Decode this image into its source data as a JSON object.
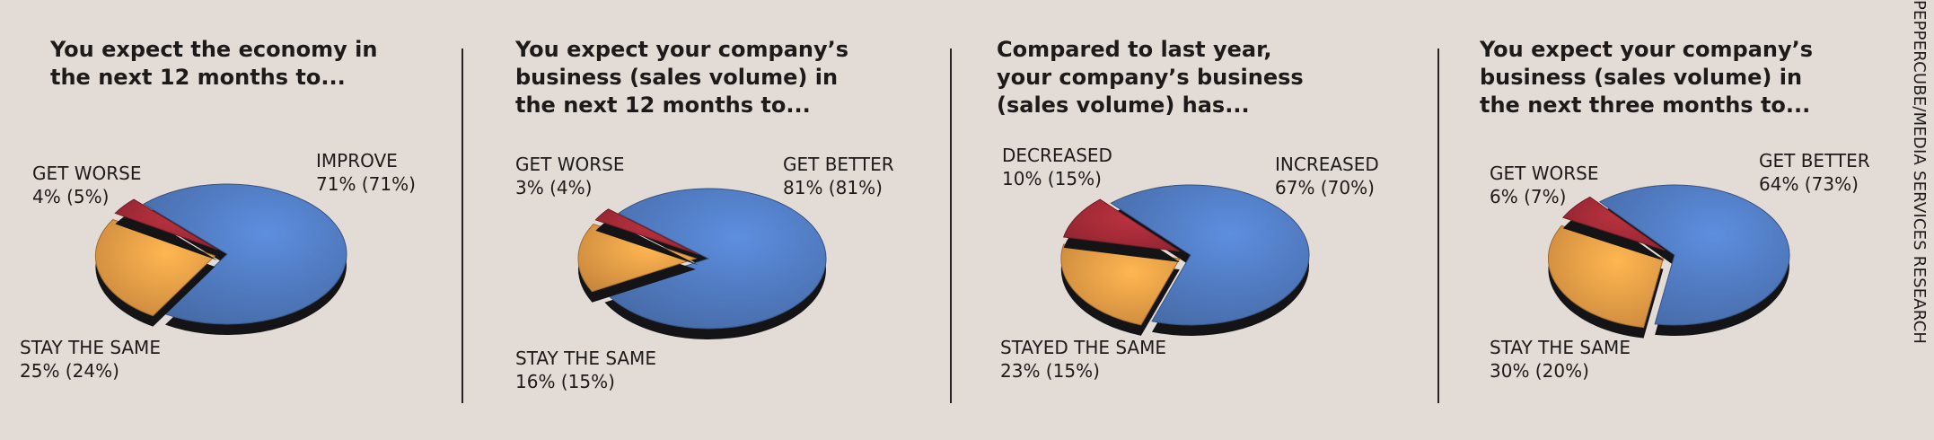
{
  "credit": "PEPPERCUBE/MEDIA SERVICES RESEARCH",
  "colors": {
    "blue": "#4f78bd",
    "orange": "#e69a45",
    "red": "#a12a36"
  },
  "chart_data": [
    {
      "type": "pie",
      "title_lines": [
        "You expect the economy in",
        "the next 12 months to..."
      ],
      "slices": [
        {
          "label": "IMPROVE",
          "value": 71,
          "prior": 71,
          "text": "71% (71%)",
          "color": "blue"
        },
        {
          "label": "STAY THE SAME",
          "value": 25,
          "prior": 24,
          "text": "25% (24%)",
          "color": "orange"
        },
        {
          "label": "GET WORSE",
          "value": 4,
          "prior": 5,
          "text": "4% (5%)",
          "color": "red"
        }
      ]
    },
    {
      "type": "pie",
      "title_lines": [
        "You expect your company’s",
        "business (sales volume) in",
        "the next 12 months to..."
      ],
      "slices": [
        {
          "label": "GET BETTER",
          "value": 81,
          "prior": 81,
          "text": "81% (81%)",
          "color": "blue"
        },
        {
          "label": "STAY THE SAME",
          "value": 16,
          "prior": 15,
          "text": "16% (15%)",
          "color": "orange"
        },
        {
          "label": "GET WORSE",
          "value": 3,
          "prior": 4,
          "text": "3% (4%)",
          "color": "red"
        }
      ]
    },
    {
      "type": "pie",
      "title_lines": [
        "Compared to last year,",
        "your company’s business",
        "(sales volume) has..."
      ],
      "slices": [
        {
          "label": "INCREASED",
          "value": 67,
          "prior": 70,
          "text": "67% (70%)",
          "color": "blue"
        },
        {
          "label": "STAYED THE SAME",
          "value": 23,
          "prior": 15,
          "text": "23% (15%)",
          "color": "orange"
        },
        {
          "label": "DECREASED",
          "value": 10,
          "prior": 15,
          "text": "10% (15%)",
          "color": "red"
        }
      ]
    },
    {
      "type": "pie",
      "title_lines": [
        "You expect your company’s",
        "business (sales volume) in",
        "the next three months to..."
      ],
      "slices": [
        {
          "label": "GET BETTER",
          "value": 64,
          "prior": 73,
          "text": "64% (73%)",
          "color": "blue"
        },
        {
          "label": "STAY THE SAME",
          "value": 30,
          "prior": 20,
          "text": "30% (20%)",
          "color": "orange"
        },
        {
          "label": "GET WORSE",
          "value": 6,
          "prior": 7,
          "text": "6% (7%)",
          "color": "red"
        }
      ]
    }
  ]
}
